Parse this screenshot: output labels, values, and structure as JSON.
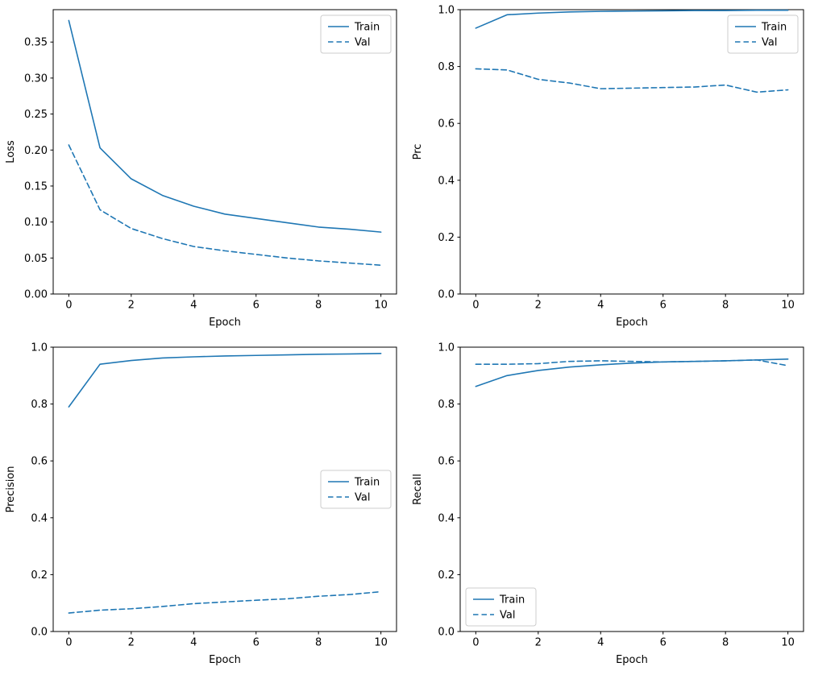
{
  "figure": {
    "background": "#ffffff",
    "accent": "#1f77b4",
    "spine_color": "#000000",
    "legend_border_color": "#cccccc"
  },
  "chart_data": [
    {
      "id": "loss",
      "type": "line",
      "title": "",
      "xlabel": "Epoch",
      "ylabel": "Loss",
      "xlim": [
        -0.5,
        10.5
      ],
      "ylim": [
        0.0,
        0.395
      ],
      "xticks": [
        0,
        2,
        4,
        6,
        8,
        10
      ],
      "xtick_labels": [
        "0",
        "2",
        "4",
        "6",
        "8",
        "10"
      ],
      "yticks": [
        0.0,
        0.05,
        0.1,
        0.15,
        0.2,
        0.25,
        0.3,
        0.35
      ],
      "ytick_labels": [
        "0.00",
        "0.05",
        "0.10",
        "0.15",
        "0.20",
        "0.25",
        "0.30",
        "0.35"
      ],
      "grid": false,
      "legend": {
        "position": "upper right",
        "entries": [
          "Train",
          "Val"
        ]
      },
      "x": [
        0,
        1,
        2,
        3,
        4,
        5,
        6,
        7,
        8,
        9,
        10
      ],
      "series": [
        {
          "name": "Train",
          "style": "solid",
          "values": [
            0.38,
            0.203,
            0.16,
            0.137,
            0.122,
            0.111,
            0.105,
            0.099,
            0.093,
            0.09,
            0.086
          ]
        },
        {
          "name": "Val",
          "style": "dashed",
          "values": [
            0.207,
            0.117,
            0.091,
            0.077,
            0.066,
            0.06,
            0.055,
            0.05,
            0.046,
            0.043,
            0.04
          ]
        }
      ]
    },
    {
      "id": "prc",
      "type": "line",
      "title": "",
      "xlabel": "Epoch",
      "ylabel": "Prc",
      "xlim": [
        -0.5,
        10.5
      ],
      "ylim": [
        0.0,
        1.0
      ],
      "xticks": [
        0,
        2,
        4,
        6,
        8,
        10
      ],
      "xtick_labels": [
        "0",
        "2",
        "4",
        "6",
        "8",
        "10"
      ],
      "yticks": [
        0.0,
        0.2,
        0.4,
        0.6,
        0.8,
        1.0
      ],
      "ytick_labels": [
        "0.0",
        "0.2",
        "0.4",
        "0.6",
        "0.8",
        "1.0"
      ],
      "grid": false,
      "legend": {
        "position": "upper right",
        "entries": [
          "Train",
          "Val"
        ]
      },
      "x": [
        0,
        1,
        2,
        3,
        4,
        5,
        6,
        7,
        8,
        9,
        10
      ],
      "series": [
        {
          "name": "Train",
          "style": "solid",
          "values": [
            0.935,
            0.982,
            0.988,
            0.992,
            0.994,
            0.995,
            0.996,
            0.997,
            0.997,
            0.998,
            0.998
          ]
        },
        {
          "name": "Val",
          "style": "dashed",
          "values": [
            0.792,
            0.788,
            0.755,
            0.742,
            0.722,
            0.724,
            0.726,
            0.728,
            0.735,
            0.71,
            0.718
          ]
        }
      ]
    },
    {
      "id": "precision",
      "type": "line",
      "title": "",
      "xlabel": "Epoch",
      "ylabel": "Precision",
      "xlim": [
        -0.5,
        10.5
      ],
      "ylim": [
        0.0,
        1.0
      ],
      "xticks": [
        0,
        2,
        4,
        6,
        8,
        10
      ],
      "xtick_labels": [
        "0",
        "2",
        "4",
        "6",
        "8",
        "10"
      ],
      "yticks": [
        0.0,
        0.2,
        0.4,
        0.6,
        0.8,
        1.0
      ],
      "ytick_labels": [
        "0.0",
        "0.2",
        "0.4",
        "0.6",
        "0.8",
        "1.0"
      ],
      "grid": false,
      "legend": {
        "position": "center right",
        "entries": [
          "Train",
          "Val"
        ]
      },
      "x": [
        0,
        1,
        2,
        3,
        4,
        5,
        6,
        7,
        8,
        9,
        10
      ],
      "series": [
        {
          "name": "Train",
          "style": "solid",
          "values": [
            0.79,
            0.94,
            0.953,
            0.962,
            0.966,
            0.969,
            0.971,
            0.973,
            0.975,
            0.976,
            0.978
          ]
        },
        {
          "name": "Val",
          "style": "dashed",
          "values": [
            0.065,
            0.075,
            0.08,
            0.088,
            0.098,
            0.104,
            0.11,
            0.115,
            0.124,
            0.13,
            0.14
          ]
        }
      ]
    },
    {
      "id": "recall",
      "type": "line",
      "title": "",
      "xlabel": "Epoch",
      "ylabel": "Recall",
      "xlim": [
        -0.5,
        10.5
      ],
      "ylim": [
        0.0,
        1.0
      ],
      "xticks": [
        0,
        2,
        4,
        6,
        8,
        10
      ],
      "xtick_labels": [
        "0",
        "2",
        "4",
        "6",
        "8",
        "10"
      ],
      "yticks": [
        0.0,
        0.2,
        0.4,
        0.6,
        0.8,
        1.0
      ],
      "ytick_labels": [
        "0.0",
        "0.2",
        "0.4",
        "0.6",
        "0.8",
        "1.0"
      ],
      "grid": false,
      "legend": {
        "position": "lower left",
        "entries": [
          "Train",
          "Val"
        ]
      },
      "x": [
        0,
        1,
        2,
        3,
        4,
        5,
        6,
        7,
        8,
        9,
        10
      ],
      "series": [
        {
          "name": "Train",
          "style": "solid",
          "values": [
            0.862,
            0.9,
            0.918,
            0.93,
            0.938,
            0.944,
            0.948,
            0.95,
            0.952,
            0.955,
            0.958
          ]
        },
        {
          "name": "Val",
          "style": "dashed",
          "values": [
            0.94,
            0.94,
            0.942,
            0.95,
            0.952,
            0.95,
            0.948,
            0.95,
            0.952,
            0.955,
            0.935
          ]
        }
      ]
    }
  ]
}
